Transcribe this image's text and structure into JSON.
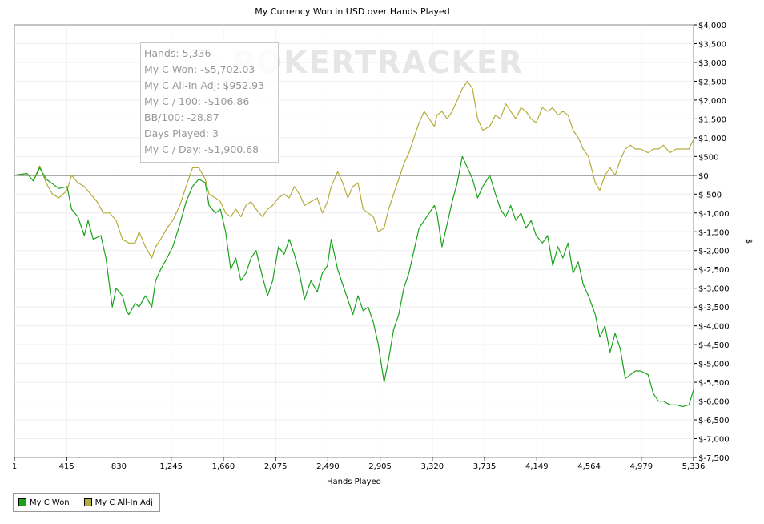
{
  "watermark": "POKERTRACKER",
  "tooltip": {
    "lines": [
      "Hands: 5,336",
      "My C Won: -$5,702.03",
      "My C All-In Adj: $952.93",
      "My C / 100: -$106.86",
      "BB/100: -28.87",
      "Days Played: 3",
      "My C / Day: -$1,900.68"
    ]
  },
  "legend": {
    "items": [
      {
        "label": "My C Won",
        "color": "#1aa31a"
      },
      {
        "label": "My C All-In Adj",
        "color": "#b5ad3c"
      }
    ]
  },
  "chart_data": {
    "type": "line",
    "title": "My Currency Won in USD over Hands Played",
    "xlabel": "Hands Played",
    "ylabel": "$",
    "x_tick_labels": [
      "1",
      "415",
      "830",
      "1,245",
      "1,660",
      "2,075",
      "2,490",
      "2,905",
      "3,320",
      "3,735",
      "4,149",
      "4,564",
      "4,979",
      "5,336"
    ],
    "y_tick_labels": [
      "$4,000",
      "$3,500",
      "$3,000",
      "$2,500",
      "$2,000",
      "$1,500",
      "$1,000",
      "$500",
      "$0",
      "$-500",
      "$-1,000",
      "$-1,500",
      "$-2,000",
      "$-2,500",
      "$-3,000",
      "$-3,500",
      "$-4,000",
      "$-4,500",
      "$-5,000",
      "$-5,500",
      "$-6,000",
      "$-6,500",
      "$-7,000",
      "$-7,500"
    ],
    "xlim": [
      1,
      5336
    ],
    "ylim": [
      -7500,
      4000
    ],
    "grid": true,
    "zero_line": true,
    "legend_position": "bottom-left",
    "series": [
      {
        "name": "My C Won",
        "color": "#1aa31a",
        "points": [
          [
            1,
            0
          ],
          [
            100,
            50
          ],
          [
            150,
            -150
          ],
          [
            200,
            200
          ],
          [
            250,
            -100
          ],
          [
            350,
            -350
          ],
          [
            415,
            -300
          ],
          [
            450,
            -900
          ],
          [
            500,
            -1100
          ],
          [
            550,
            -1600
          ],
          [
            580,
            -1200
          ],
          [
            620,
            -1700
          ],
          [
            680,
            -1600
          ],
          [
            720,
            -2200
          ],
          [
            750,
            -3000
          ],
          [
            770,
            -3500
          ],
          [
            800,
            -3000
          ],
          [
            850,
            -3200
          ],
          [
            880,
            -3600
          ],
          [
            900,
            -3700
          ],
          [
            950,
            -3400
          ],
          [
            980,
            -3500
          ],
          [
            1030,
            -3200
          ],
          [
            1080,
            -3500
          ],
          [
            1110,
            -2800
          ],
          [
            1150,
            -2500
          ],
          [
            1200,
            -2200
          ],
          [
            1245,
            -1900
          ],
          [
            1300,
            -1300
          ],
          [
            1350,
            -700
          ],
          [
            1400,
            -300
          ],
          [
            1450,
            -100
          ],
          [
            1500,
            -200
          ],
          [
            1530,
            -800
          ],
          [
            1580,
            -1000
          ],
          [
            1620,
            -900
          ],
          [
            1660,
            -1500
          ],
          [
            1700,
            -2500
          ],
          [
            1740,
            -2200
          ],
          [
            1780,
            -2800
          ],
          [
            1820,
            -2600
          ],
          [
            1860,
            -2200
          ],
          [
            1900,
            -2000
          ],
          [
            1950,
            -2700
          ],
          [
            1990,
            -3200
          ],
          [
            2030,
            -2800
          ],
          [
            2075,
            -1900
          ],
          [
            2120,
            -2100
          ],
          [
            2160,
            -1700
          ],
          [
            2200,
            -2100
          ],
          [
            2240,
            -2600
          ],
          [
            2280,
            -3300
          ],
          [
            2330,
            -2800
          ],
          [
            2380,
            -3100
          ],
          [
            2420,
            -2600
          ],
          [
            2460,
            -2400
          ],
          [
            2490,
            -1700
          ],
          [
            2540,
            -2500
          ],
          [
            2580,
            -2900
          ],
          [
            2620,
            -3300
          ],
          [
            2660,
            -3700
          ],
          [
            2700,
            -3200
          ],
          [
            2740,
            -3600
          ],
          [
            2780,
            -3500
          ],
          [
            2820,
            -3900
          ],
          [
            2860,
            -4500
          ],
          [
            2905,
            -5500
          ],
          [
            2940,
            -4900
          ],
          [
            2980,
            -4100
          ],
          [
            3020,
            -3700
          ],
          [
            3060,
            -3000
          ],
          [
            3100,
            -2600
          ],
          [
            3140,
            -2000
          ],
          [
            3180,
            -1400
          ],
          [
            3220,
            -1200
          ],
          [
            3260,
            -1000
          ],
          [
            3300,
            -800
          ],
          [
            3320,
            -1000
          ],
          [
            3360,
            -1900
          ],
          [
            3400,
            -1300
          ],
          [
            3440,
            -700
          ],
          [
            3480,
            -200
          ],
          [
            3520,
            500
          ],
          [
            3560,
            200
          ],
          [
            3600,
            -100
          ],
          [
            3640,
            -600
          ],
          [
            3680,
            -300
          ],
          [
            3735,
            0
          ],
          [
            3780,
            -500
          ],
          [
            3820,
            -900
          ],
          [
            3860,
            -1100
          ],
          [
            3900,
            -800
          ],
          [
            3940,
            -1200
          ],
          [
            3980,
            -1000
          ],
          [
            4020,
            -1400
          ],
          [
            4060,
            -1200
          ],
          [
            4100,
            -1600
          ],
          [
            4149,
            -1800
          ],
          [
            4190,
            -1600
          ],
          [
            4230,
            -2400
          ],
          [
            4270,
            -1900
          ],
          [
            4310,
            -2200
          ],
          [
            4350,
            -1800
          ],
          [
            4390,
            -2600
          ],
          [
            4430,
            -2300
          ],
          [
            4470,
            -2900
          ],
          [
            4510,
            -3200
          ],
          [
            4564,
            -3700
          ],
          [
            4600,
            -4300
          ],
          [
            4640,
            -4000
          ],
          [
            4680,
            -4700
          ],
          [
            4720,
            -4200
          ],
          [
            4760,
            -4600
          ],
          [
            4800,
            -5400
          ],
          [
            4840,
            -5300
          ],
          [
            4880,
            -5200
          ],
          [
            4920,
            -5200
          ],
          [
            4979,
            -5300
          ],
          [
            5020,
            -5800
          ],
          [
            5060,
            -6000
          ],
          [
            5100,
            -6000
          ],
          [
            5150,
            -6100
          ],
          [
            5200,
            -6100
          ],
          [
            5250,
            -6150
          ],
          [
            5300,
            -6100
          ],
          [
            5336,
            -5702
          ]
        ]
      },
      {
        "name": "My C All-In Adj",
        "color": "#b5ad3c",
        "points": [
          [
            1,
            0
          ],
          [
            100,
            50
          ],
          [
            150,
            -150
          ],
          [
            200,
            250
          ],
          [
            250,
            -200
          ],
          [
            300,
            -500
          ],
          [
            350,
            -600
          ],
          [
            415,
            -400
          ],
          [
            450,
            0
          ],
          [
            500,
            -200
          ],
          [
            550,
            -300
          ],
          [
            600,
            -500
          ],
          [
            650,
            -700
          ],
          [
            700,
            -1000
          ],
          [
            750,
            -1000
          ],
          [
            800,
            -1200
          ],
          [
            850,
            -1700
          ],
          [
            900,
            -1800
          ],
          [
            950,
            -1800
          ],
          [
            980,
            -1500
          ],
          [
            1030,
            -1900
          ],
          [
            1080,
            -2200
          ],
          [
            1110,
            -1900
          ],
          [
            1150,
            -1700
          ],
          [
            1200,
            -1400
          ],
          [
            1245,
            -1200
          ],
          [
            1300,
            -800
          ],
          [
            1350,
            -300
          ],
          [
            1400,
            200
          ],
          [
            1450,
            200
          ],
          [
            1500,
            -100
          ],
          [
            1530,
            -500
          ],
          [
            1580,
            -600
          ],
          [
            1620,
            -700
          ],
          [
            1660,
            -1000
          ],
          [
            1700,
            -1100
          ],
          [
            1740,
            -900
          ],
          [
            1780,
            -1100
          ],
          [
            1820,
            -800
          ],
          [
            1860,
            -700
          ],
          [
            1900,
            -900
          ],
          [
            1950,
            -1100
          ],
          [
            1990,
            -900
          ],
          [
            2030,
            -800
          ],
          [
            2075,
            -600
          ],
          [
            2120,
            -500
          ],
          [
            2160,
            -600
          ],
          [
            2200,
            -300
          ],
          [
            2240,
            -500
          ],
          [
            2280,
            -800
          ],
          [
            2330,
            -700
          ],
          [
            2380,
            -600
          ],
          [
            2420,
            -1000
          ],
          [
            2460,
            -700
          ],
          [
            2490,
            -300
          ],
          [
            2540,
            100
          ],
          [
            2580,
            -200
          ],
          [
            2620,
            -600
          ],
          [
            2660,
            -300
          ],
          [
            2700,
            -200
          ],
          [
            2740,
            -900
          ],
          [
            2780,
            -1000
          ],
          [
            2820,
            -1100
          ],
          [
            2860,
            -1500
          ],
          [
            2905,
            -1400
          ],
          [
            2940,
            -900
          ],
          [
            2980,
            -500
          ],
          [
            3020,
            -100
          ],
          [
            3060,
            300
          ],
          [
            3100,
            600
          ],
          [
            3140,
            1000
          ],
          [
            3180,
            1400
          ],
          [
            3220,
            1700
          ],
          [
            3260,
            1500
          ],
          [
            3300,
            1300
          ],
          [
            3320,
            1600
          ],
          [
            3360,
            1700
          ],
          [
            3400,
            1500
          ],
          [
            3440,
            1700
          ],
          [
            3480,
            2000
          ],
          [
            3520,
            2300
          ],
          [
            3560,
            2500
          ],
          [
            3600,
            2300
          ],
          [
            3640,
            1500
          ],
          [
            3680,
            1200
          ],
          [
            3735,
            1300
          ],
          [
            3780,
            1600
          ],
          [
            3820,
            1500
          ],
          [
            3860,
            1900
          ],
          [
            3900,
            1700
          ],
          [
            3940,
            1500
          ],
          [
            3980,
            1800
          ],
          [
            4020,
            1700
          ],
          [
            4060,
            1500
          ],
          [
            4100,
            1400
          ],
          [
            4149,
            1800
          ],
          [
            4190,
            1700
          ],
          [
            4230,
            1800
          ],
          [
            4270,
            1600
          ],
          [
            4310,
            1700
          ],
          [
            4350,
            1600
          ],
          [
            4390,
            1200
          ],
          [
            4430,
            1000
          ],
          [
            4470,
            700
          ],
          [
            4510,
            500
          ],
          [
            4564,
            -200
          ],
          [
            4600,
            -400
          ],
          [
            4640,
            0
          ],
          [
            4680,
            200
          ],
          [
            4720,
            0
          ],
          [
            4760,
            400
          ],
          [
            4800,
            700
          ],
          [
            4840,
            800
          ],
          [
            4880,
            700
          ],
          [
            4920,
            700
          ],
          [
            4979,
            600
          ],
          [
            5020,
            700
          ],
          [
            5060,
            700
          ],
          [
            5100,
            800
          ],
          [
            5150,
            600
          ],
          [
            5200,
            700
          ],
          [
            5250,
            700
          ],
          [
            5300,
            700
          ],
          [
            5336,
            953
          ]
        ]
      }
    ]
  }
}
